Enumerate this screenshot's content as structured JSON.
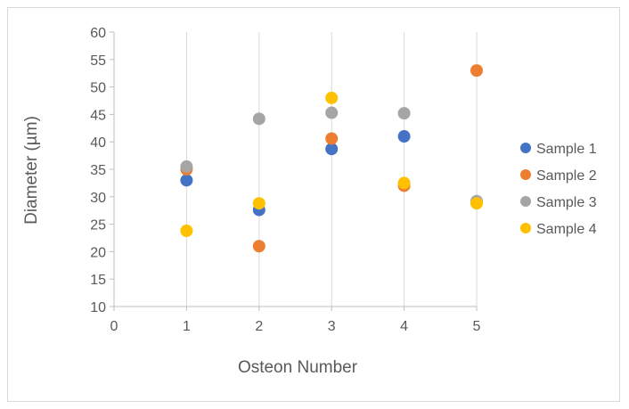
{
  "chart_data": {
    "type": "scatter",
    "title": "",
    "xlabel": "Osteon Number",
    "ylabel": "Diameter (µm)",
    "xlim": [
      0,
      5
    ],
    "ylim": [
      10,
      60
    ],
    "xticks": [
      0,
      1,
      2,
      3,
      4,
      5
    ],
    "yticks": [
      10,
      15,
      20,
      25,
      30,
      35,
      40,
      45,
      50,
      55,
      60
    ],
    "grid": "vertical",
    "legend": "right",
    "series": [
      {
        "name": "Sample 1",
        "color": "#4472c4",
        "x": [
          1,
          2,
          3,
          4
        ],
        "y": [
          33.0,
          27.6,
          38.7,
          41.0
        ]
      },
      {
        "name": "Sample 2",
        "color": "#ed7d31",
        "x": [
          1,
          2,
          3,
          4,
          5
        ],
        "y": [
          35.0,
          21.0,
          40.6,
          32.0,
          53.0
        ]
      },
      {
        "name": "Sample 3",
        "color": "#a5a5a5",
        "x": [
          1,
          2,
          3,
          4,
          5
        ],
        "y": [
          35.5,
          44.2,
          45.3,
          45.2,
          29.2
        ]
      },
      {
        "name": "Sample 4",
        "color": "#ffc000",
        "x": [
          1,
          2,
          3,
          4,
          5
        ],
        "y": [
          23.8,
          28.8,
          48.0,
          32.5,
          28.8
        ]
      }
    ]
  }
}
